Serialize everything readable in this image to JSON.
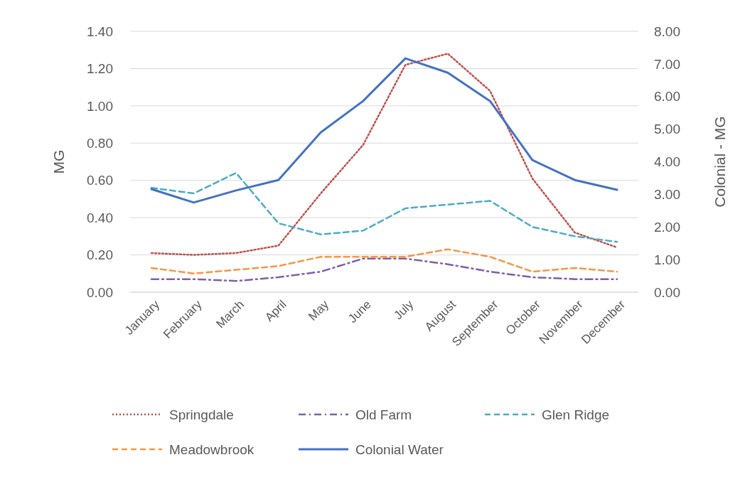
{
  "chart_data": {
    "type": "line",
    "ylabel": "MG",
    "y2label": "Colonial - MG",
    "categories": [
      "January",
      "February",
      "March",
      "April",
      "May",
      "June",
      "July",
      "August",
      "September",
      "October",
      "November",
      "December"
    ],
    "series": [
      {
        "name": "Springdale",
        "color": "#c0504d",
        "line_style": "dotted",
        "values": [
          0.21,
          0.2,
          0.21,
          0.25,
          0.53,
          0.79,
          1.22,
          1.28,
          1.08,
          0.61,
          0.32,
          0.24
        ]
      },
      {
        "name": "Old Farm",
        "color": "#7f5fa8",
        "line_style": "dashdot",
        "values": [
          0.07,
          0.07,
          0.06,
          0.08,
          0.11,
          0.18,
          0.18,
          0.15,
          0.11,
          0.08,
          0.07,
          0.07
        ]
      },
      {
        "name": "Glen Ridge",
        "color": "#4bacc6",
        "line_style": "dashed",
        "values": [
          0.56,
          0.53,
          0.64,
          0.37,
          0.31,
          0.33,
          0.45,
          0.47,
          0.49,
          0.35,
          0.3,
          0.27
        ]
      },
      {
        "name": "Meadowbrook",
        "color": "#f79646",
        "line_style": "dashed",
        "values": [
          0.13,
          0.1,
          0.12,
          0.14,
          0.19,
          0.19,
          0.19,
          0.23,
          0.19,
          0.11,
          0.13,
          0.11
        ]
      },
      {
        "name": "Colonial Water",
        "color": "#4472c4",
        "line_style": "solid",
        "axis": "y2",
        "values": [
          3.16,
          2.75,
          3.12,
          3.44,
          4.9,
          5.86,
          7.17,
          6.73,
          5.86,
          4.05,
          3.44,
          3.14
        ]
      }
    ],
    "ylim": [
      0,
      1.4
    ],
    "yticks": [
      {
        "value": 0,
        "label": "0.00"
      },
      {
        "value": 0.2,
        "label": "0.20"
      },
      {
        "value": 0.4,
        "label": "0.40"
      },
      {
        "value": 0.6,
        "label": "0.60"
      },
      {
        "value": 0.8,
        "label": "0.80"
      },
      {
        "value": 1,
        "label": "1.00"
      },
      {
        "value": 1.2,
        "label": "1.20"
      },
      {
        "value": 1.4,
        "label": "1.40"
      }
    ],
    "y2lim": [
      0,
      8
    ],
    "y2ticks": [
      {
        "value": 0,
        "label": "0.00"
      },
      {
        "value": 1,
        "label": "1.00"
      },
      {
        "value": 2,
        "label": "2.00"
      },
      {
        "value": 3,
        "label": "3.00"
      },
      {
        "value": 4,
        "label": "4.00"
      },
      {
        "value": 5,
        "label": "5.00"
      },
      {
        "value": 6,
        "label": "6.00"
      },
      {
        "value": 7,
        "label": "7.00"
      },
      {
        "value": 8,
        "label": "8.00"
      }
    ],
    "grid": "y",
    "legend": "bottom",
    "marker": "none"
  }
}
